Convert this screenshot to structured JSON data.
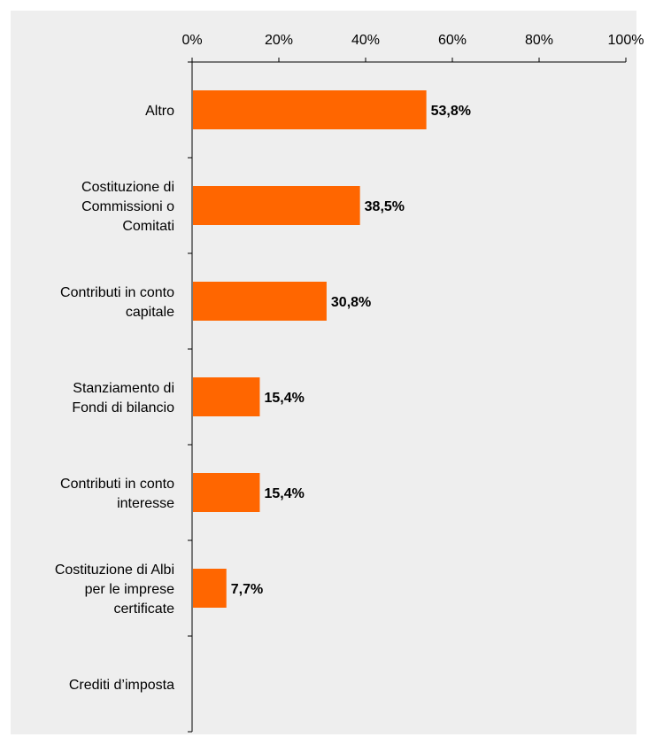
{
  "chart_data": {
    "type": "bar",
    "orientation": "horizontal",
    "categories": [
      [
        "Altro"
      ],
      [
        "Costituzione di",
        "Commissioni o",
        "Comitati"
      ],
      [
        "Contributi in conto",
        "capitale"
      ],
      [
        "Stanziamento di",
        "Fondi di bilancio"
      ],
      [
        "Contributi in conto",
        "interesse"
      ],
      [
        "Costituzione di Albi",
        "per le imprese",
        "certificate"
      ],
      [
        "Crediti d’imposta"
      ]
    ],
    "values": [
      53.8,
      38.5,
      30.8,
      15.4,
      15.4,
      7.7,
      0
    ],
    "data_labels": [
      "53,8%",
      "38,5%",
      "30,8%",
      "15,4%",
      "15,4%",
      "7,7%",
      ""
    ],
    "x_ticks": [
      "0%",
      "20%",
      "40%",
      "60%",
      "80%",
      "100%"
    ],
    "xlim": [
      0,
      100
    ],
    "x_axis_position": "top",
    "grid": false,
    "legend": "none",
    "colors": {
      "bar": "#FF6600",
      "background": "#EEEEEE",
      "axis": "#000000"
    }
  }
}
